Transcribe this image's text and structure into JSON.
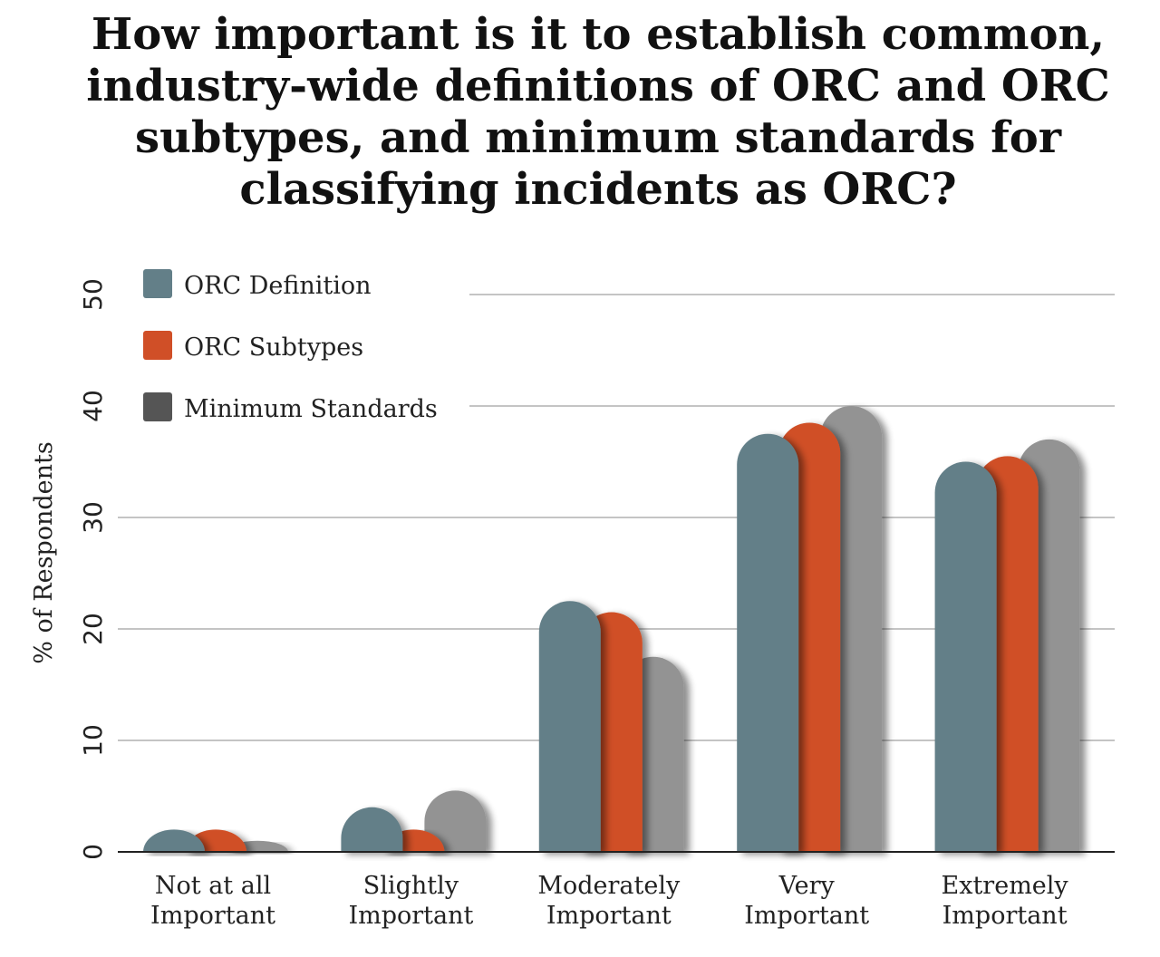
{
  "chart_data": {
    "type": "bar",
    "title_lines": [
      "How important is it to establish common,",
      "industry-wide definitions of ORC and ORC",
      "subtypes, and minimum standards for",
      "classifying incidents as ORC?"
    ],
    "ylabel": "% of Respondents",
    "xlabel": "",
    "ylim": [
      0,
      50
    ],
    "yticks": [
      0,
      10,
      20,
      30,
      40,
      50
    ],
    "categories": [
      [
        "Not at all",
        "Important"
      ],
      [
        "Slightly",
        "Important"
      ],
      [
        "Moderately",
        "Important"
      ],
      [
        "Very",
        "Important"
      ],
      [
        "Extremely",
        "Important"
      ]
    ],
    "series": [
      {
        "name": "ORC Definition",
        "color": "#637f88",
        "values": [
          2,
          4,
          22.5,
          37.5,
          35
        ]
      },
      {
        "name": "ORC Subtypes",
        "color": "#d04f27",
        "values": [
          2,
          2,
          21.5,
          38.5,
          35.5
        ]
      },
      {
        "name": "Minimum Standards",
        "color": "#939393",
        "legend_color": "#555555",
        "values": [
          1,
          5.5,
          17.5,
          40,
          37
        ]
      }
    ],
    "grid": true,
    "legend_position": "top-left"
  }
}
